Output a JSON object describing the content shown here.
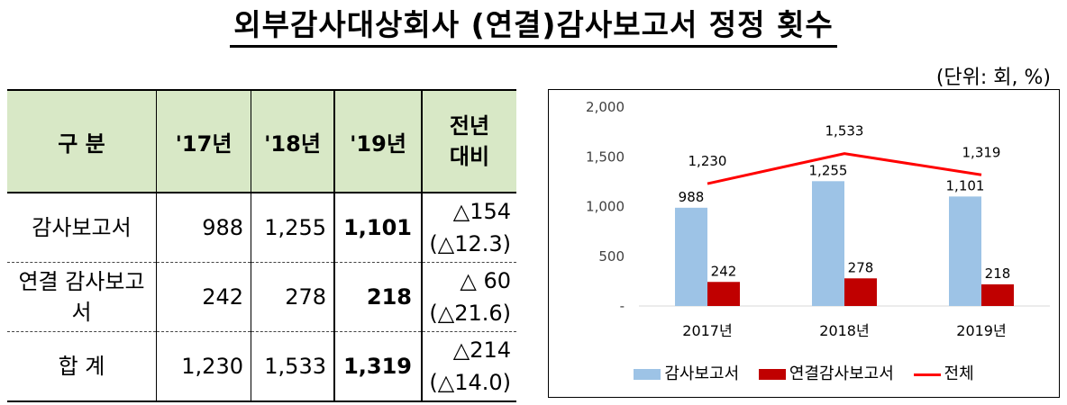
{
  "title": "외부감사대상회사 (연결)감사보고서 정정 횟수",
  "unit": "(단위: 회, %)",
  "table": {
    "headers": [
      "구 분",
      "'17년",
      "'18년",
      "'19년",
      "전년 대비"
    ],
    "rows": [
      {
        "label": "감사보고서",
        "v17": "988",
        "v18": "1,255",
        "v19": "1,101",
        "diff": "△154",
        "pct": "(△12.3)"
      },
      {
        "label": "연결 감사보고서",
        "v17": "242",
        "v18": "278",
        "v19": "218",
        "diff": "△ 60",
        "pct": "(△21.6)"
      },
      {
        "label": "합 계",
        "v17": "1,230",
        "v18": "1,533",
        "v19": "1,319",
        "diff": "△214",
        "pct": "(△14.0)"
      }
    ]
  },
  "chart_data": {
    "type": "bar",
    "categories": [
      "2017년",
      "2018년",
      "2019년"
    ],
    "series": [
      {
        "name": "감사보고서",
        "type": "bar",
        "color": "#9dc3e6",
        "values": [
          988,
          1255,
          1101
        ]
      },
      {
        "name": "연결감사보고서",
        "type": "bar",
        "color": "#c00000",
        "values": [
          242,
          278,
          218
        ]
      },
      {
        "name": "전체",
        "type": "line",
        "color": "#ff0000",
        "values": [
          1230,
          1533,
          1319
        ]
      }
    ],
    "ylim": [
      0,
      2000
    ],
    "yticks": [
      0,
      500,
      1000,
      1500,
      2000
    ],
    "ytick_labels": [
      "-",
      "500",
      "1,000",
      "1,500",
      "2,000"
    ],
    "data_labels": [
      [
        "988",
        "1,255",
        "1,101"
      ],
      [
        "242",
        "278",
        "218"
      ],
      [
        "1,230",
        "1,533",
        "1,319"
      ]
    ],
    "legend": "bottom",
    "grid": false
  }
}
